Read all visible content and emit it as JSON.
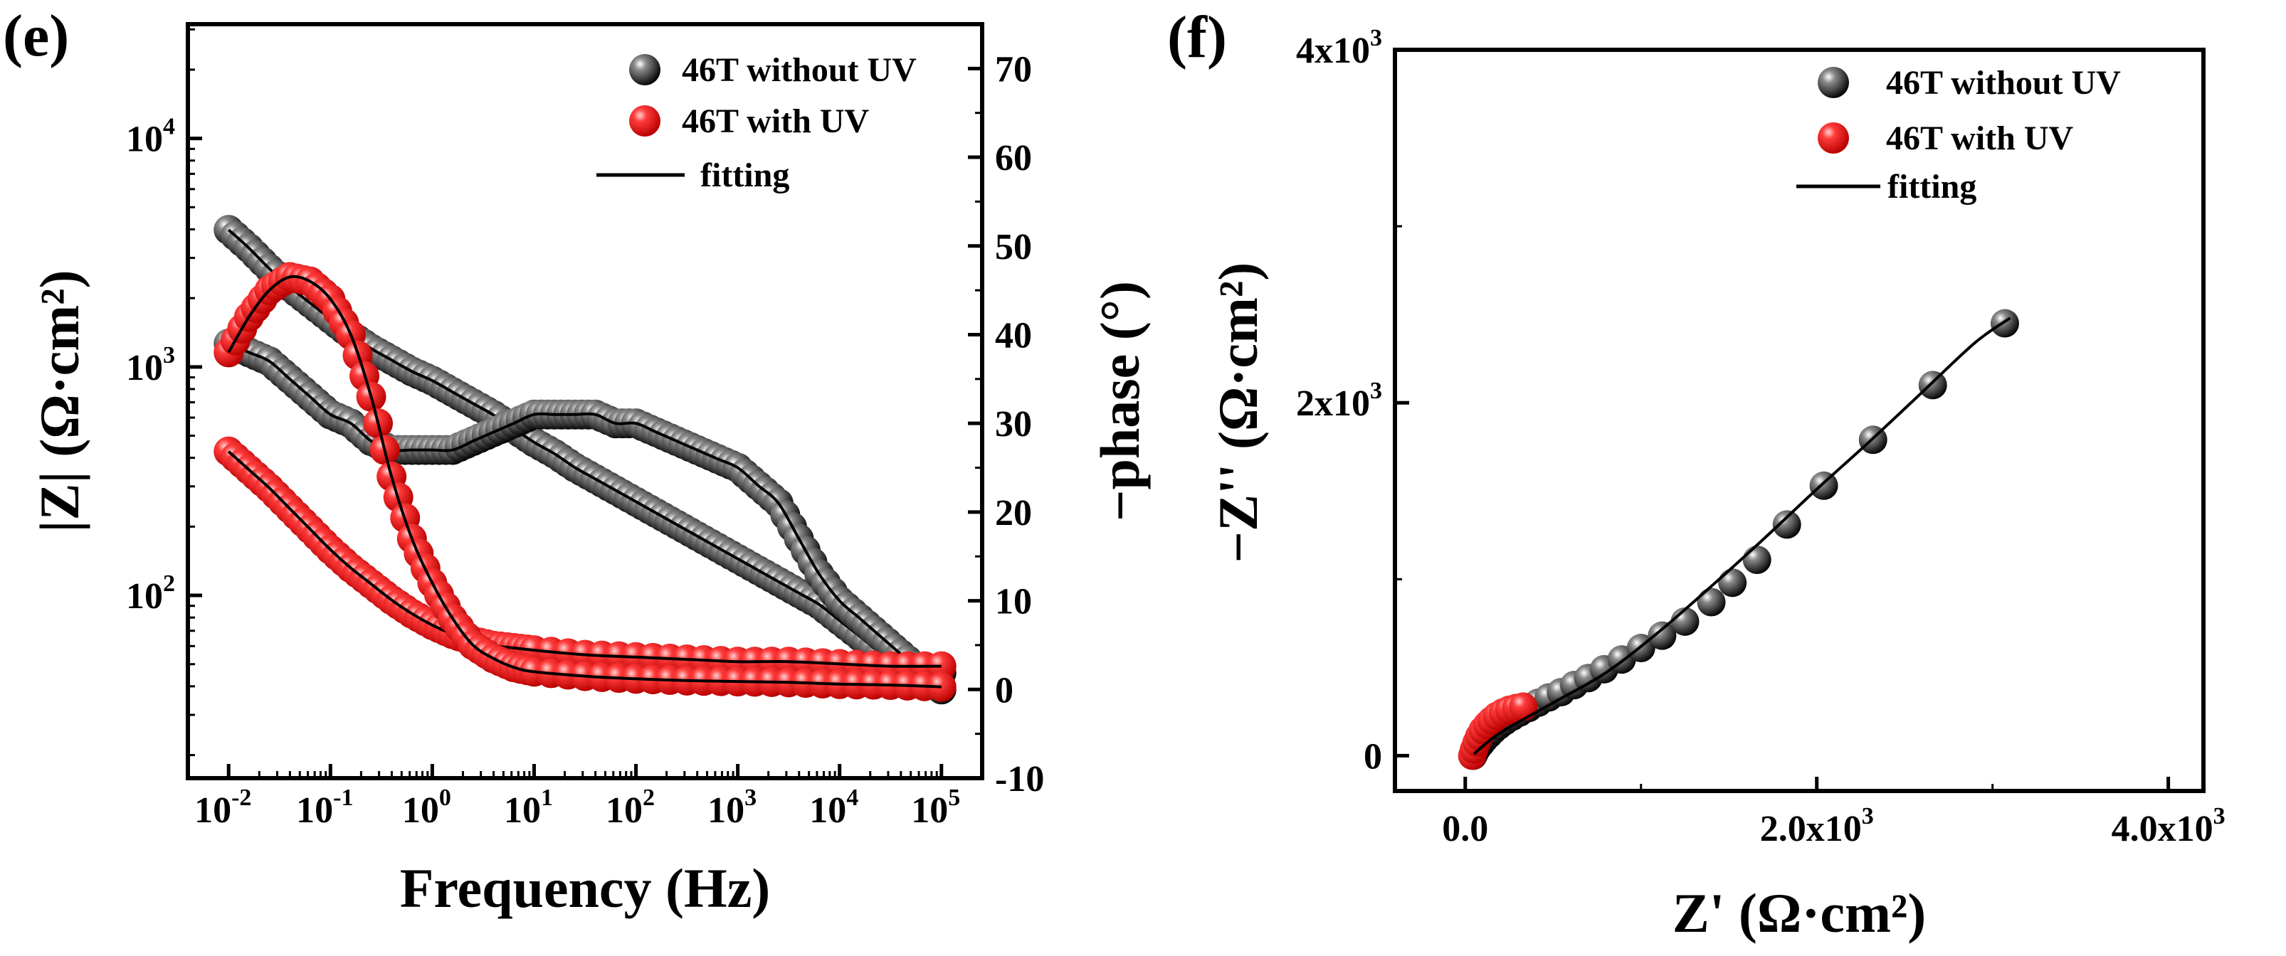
{
  "figure": {
    "panel_e_label": "(e)",
    "panel_f_label": "(f)"
  },
  "colors": {
    "without_uv": "#111111",
    "with_uv": "#e81818",
    "fitting": "#000000"
  },
  "chart_data": [
    {
      "id": "e",
      "type": "scatter",
      "title": "(e)",
      "xlabel": "Frequency (Hz)",
      "ylabel": "|Z| (Ω·cm²)",
      "y2label": "−phase (°)",
      "xscale": "log",
      "xlim_log10": [
        -2.4,
        5.4
      ],
      "yscale": "log",
      "ylim_log10": [
        1.2,
        4.5
      ],
      "y2lim": [
        -10,
        75
      ],
      "x_ticks": [
        {
          "mantissa": "10",
          "exp": "-2",
          "log10": -2
        },
        {
          "mantissa": "10",
          "exp": "-1",
          "log10": -1
        },
        {
          "mantissa": "10",
          "exp": "0",
          "log10": 0
        },
        {
          "mantissa": "10",
          "exp": "1",
          "log10": 1
        },
        {
          "mantissa": "10",
          "exp": "2",
          "log10": 2
        },
        {
          "mantissa": "10",
          "exp": "3",
          "log10": 3
        },
        {
          "mantissa": "10",
          "exp": "4",
          "log10": 4
        },
        {
          "mantissa": "10",
          "exp": "5",
          "log10": 5
        }
      ],
      "y_ticks": [
        {
          "mantissa": "10",
          "exp": "2",
          "log10": 2
        },
        {
          "mantissa": "10",
          "exp": "3",
          "log10": 3
        },
        {
          "mantissa": "10",
          "exp": "4",
          "log10": 4
        }
      ],
      "y2_ticks": [
        "-10",
        "0",
        "10",
        "20",
        "30",
        "40",
        "50",
        "60",
        "70"
      ],
      "legend": {
        "position": "top-right",
        "items": [
          {
            "label": "46T without UV",
            "kind": "sphere",
            "color": "#111111"
          },
          {
            "label": "46T with UV",
            "kind": "sphere",
            "color": "#e81818"
          },
          {
            "label": "fitting",
            "kind": "line",
            "color": "#000000"
          }
        ]
      },
      "series": [
        {
          "name": "46T without UV |Z|",
          "axis": "left",
          "color": "#111111",
          "log10f": [
            -2.0,
            -1.8,
            -1.6,
            -1.4,
            -1.2,
            -1.0,
            -0.8,
            -0.6,
            -0.4,
            -0.2,
            0.0,
            0.2,
            0.4,
            0.6,
            0.8,
            1.0,
            1.2,
            1.4,
            1.6,
            1.8,
            2.0,
            2.2,
            2.4,
            2.6,
            2.8,
            3.0,
            3.2,
            3.4,
            3.6,
            3.8,
            4.0,
            4.2,
            4.4,
            4.6,
            4.8,
            5.0
          ],
          "log10Z": [
            3.6,
            3.52,
            3.43,
            3.35,
            3.28,
            3.21,
            3.14,
            3.08,
            3.03,
            2.98,
            2.94,
            2.89,
            2.84,
            2.79,
            2.73,
            2.67,
            2.62,
            2.56,
            2.51,
            2.46,
            2.41,
            2.36,
            2.31,
            2.26,
            2.21,
            2.16,
            2.11,
            2.06,
            2.01,
            1.96,
            1.89,
            1.82,
            1.75,
            1.7,
            1.67,
            1.66
          ]
        },
        {
          "name": "46T without UV phase",
          "axis": "right",
          "color": "#111111",
          "log10f": [
            -2.0,
            -1.8,
            -1.6,
            -1.4,
            -1.2,
            -1.0,
            -0.8,
            -0.6,
            -0.4,
            -0.2,
            0.0,
            0.2,
            0.4,
            0.6,
            0.8,
            1.0,
            1.2,
            1.4,
            1.6,
            1.8,
            2.0,
            2.2,
            2.4,
            2.6,
            2.8,
            3.0,
            3.2,
            3.4,
            3.6,
            3.8,
            4.0,
            4.2,
            4.4,
            4.6,
            4.8,
            5.0
          ],
          "phase": [
            39,
            38,
            37,
            35,
            33,
            31,
            30,
            28,
            27,
            27,
            27,
            27,
            28,
            29,
            30,
            31,
            31,
            31,
            31,
            30,
            30,
            29,
            28,
            27,
            26,
            25,
            23,
            21,
            17,
            13,
            10,
            8,
            6,
            4,
            2,
            0
          ]
        },
        {
          "name": "46T with UV |Z|",
          "axis": "left",
          "color": "#e81818",
          "log10f": [
            -2.0,
            -1.8,
            -1.6,
            -1.4,
            -1.2,
            -1.0,
            -0.8,
            -0.6,
            -0.4,
            -0.2,
            0.0,
            0.2,
            0.4,
            0.6,
            0.8,
            1.0,
            1.5,
            2.0,
            2.5,
            3.0,
            3.5,
            4.0,
            4.5,
            5.0
          ],
          "log10Z": [
            2.63,
            2.55,
            2.47,
            2.38,
            2.29,
            2.2,
            2.12,
            2.05,
            1.98,
            1.92,
            1.87,
            1.83,
            1.8,
            1.78,
            1.77,
            1.76,
            1.74,
            1.73,
            1.72,
            1.71,
            1.71,
            1.7,
            1.69,
            1.69
          ]
        },
        {
          "name": "46T with UV phase",
          "axis": "right",
          "color": "#e81818",
          "log10f": [
            -2.0,
            -1.8,
            -1.6,
            -1.4,
            -1.2,
            -1.0,
            -0.8,
            -0.6,
            -0.4,
            -0.2,
            0.0,
            0.2,
            0.4,
            0.6,
            0.8,
            1.0,
            1.5,
            2.0,
            2.5,
            3.0,
            3.5,
            4.0,
            4.5,
            5.0
          ],
          "phase": [
            38,
            42,
            45,
            46.5,
            46,
            44,
            40,
            33,
            24,
            17,
            12,
            8,
            5,
            3.5,
            2.5,
            2,
            1.5,
            1.2,
            1,
            0.9,
            0.8,
            0.6,
            0.5,
            0.3
          ]
        },
        {
          "name": "fitting",
          "kind": "line",
          "color": "#000000",
          "note": "fit curves drawn through each series"
        }
      ]
    },
    {
      "id": "f",
      "type": "scatter",
      "title": "(f)",
      "xlabel": "Z' (Ω·cm²)",
      "ylabel": "−Z'' (Ω·cm²)",
      "xlim": [
        -400,
        4200
      ],
      "ylim": [
        -200,
        4000
      ],
      "x_ticks": [
        {
          "value": 0,
          "label": "0.0",
          "exp": ""
        },
        {
          "value": 2000,
          "label": "2.0x10",
          "exp": "3"
        },
        {
          "value": 4000,
          "label": "4.0x10",
          "exp": "3"
        }
      ],
      "y_ticks": [
        {
          "value": 0,
          "label": "0",
          "exp": ""
        },
        {
          "value": 2000,
          "label": "2x10",
          "exp": "3"
        },
        {
          "value": 4000,
          "label": "4x10",
          "exp": "3"
        }
      ],
      "legend": {
        "position": "top-right",
        "items": [
          {
            "label": "46T without UV",
            "kind": "sphere",
            "color": "#111111"
          },
          {
            "label": "46T with UV",
            "kind": "sphere",
            "color": "#e81818"
          },
          {
            "label": "fitting",
            "kind": "line",
            "color": "#000000"
          }
        ]
      },
      "series": [
        {
          "name": "46T without UV",
          "color": "#111111",
          "x": [
            45,
            55,
            70,
            90,
            110,
            135,
            160,
            190,
            225,
            265,
            310,
            360,
            415,
            475,
            545,
            620,
            700,
            790,
            890,
            1000,
            1120,
            1250,
            1400,
            1520,
            1660,
            1830,
            2040,
            2320,
            2660,
            3070
          ],
          "y": [
            0,
            20,
            45,
            70,
            95,
            120,
            145,
            170,
            195,
            220,
            245,
            270,
            300,
            330,
            360,
            400,
            440,
            490,
            545,
            610,
            680,
            760,
            870,
            980,
            1110,
            1310,
            1530,
            1790,
            2100,
            2450
          ]
        },
        {
          "name": "46T with UV",
          "color": "#e81818",
          "x": [
            40,
            50,
            65,
            80,
            100,
            125,
            150,
            180,
            215,
            250,
            290,
            330
          ],
          "y": [
            0,
            35,
            75,
            110,
            145,
            175,
            200,
            225,
            245,
            260,
            270,
            278
          ]
        },
        {
          "name": "fitting",
          "kind": "line",
          "color": "#000000",
          "x": [
            50,
            200,
            500,
            800,
            1100,
            1400,
            1700,
            2000,
            2300,
            2600,
            2900,
            3100
          ],
          "y": [
            10,
            130,
            300,
            470,
            700,
            960,
            1230,
            1510,
            1780,
            2060,
            2340,
            2480
          ]
        }
      ]
    }
  ]
}
